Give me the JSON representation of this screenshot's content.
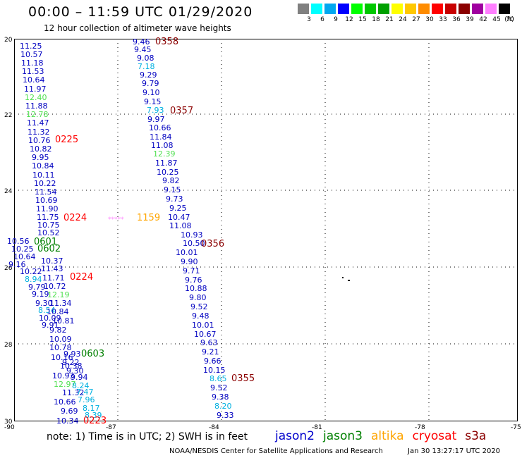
{
  "header": {
    "title": "00:00 – 11:59 UTC 01/29/2020",
    "subtitle": "12 hour collection of altimeter wave heights"
  },
  "colorbar": {
    "unit": "(ft)",
    "colors": [
      "#808080",
      "#00ffff",
      "#00a8f0",
      "#0000ff",
      "#00ff00",
      "#00c800",
      "#00a000",
      "#ffff00",
      "#ffc800",
      "#ff8c00",
      "#ff0000",
      "#c80000",
      "#8b0000",
      "#a000a0",
      "#ff7fff",
      "#000000"
    ],
    "labels": [
      "3",
      "6",
      "9",
      "12",
      "15",
      "18",
      "21",
      "24",
      "27",
      "30",
      "33",
      "36",
      "39",
      "42",
      "45",
      "70"
    ]
  },
  "axes": {
    "y_labels": [
      "20",
      "22",
      "24",
      "26",
      "28",
      "30"
    ],
    "x_labels": [
      "-90",
      "-87",
      "-84",
      "-81",
      "-78",
      "-75"
    ]
  },
  "passes": [
    {
      "label": "0358",
      "color": "#8b0000"
    },
    {
      "label": "0357",
      "color": "#8b0000"
    },
    {
      "label": "0225",
      "color": "#ff0000"
    },
    {
      "label": "0224",
      "color": "#ff0000"
    },
    {
      "label": "1159",
      "color": "#ffa500"
    },
    {
      "label": "0356",
      "color": "#8b0000"
    },
    {
      "label": "0224",
      "color": "#ff0000"
    },
    {
      "label": "0603",
      "color": "#008000"
    },
    {
      "label": "0355",
      "color": "#8b0000"
    },
    {
      "label": "0223",
      "color": "#ff0000"
    },
    {
      "label": "0601",
      "color": "#008000"
    },
    {
      "label": "0602",
      "color": "#008000"
    },
    {
      "label": "*****",
      "color": "#ff88ff"
    }
  ],
  "observations": {
    "track_0358": [
      "9.46",
      "9.45",
      "9.08",
      "7.18",
      "9.29",
      "9.79",
      "9.10",
      "9.15",
      "7.93",
      "9.97",
      "10.66",
      "11.84",
      "11.08",
      "12.39",
      "11.87",
      "10.25",
      "9.82",
      "9.15",
      "9.73",
      "9.25",
      "10.47",
      "11.08",
      "10.93",
      "10.50",
      "10.01",
      "9.90",
      "9.71",
      "9.76",
      "10.88",
      "9.80",
      "9.52",
      "9.48",
      "10.01",
      "10.67",
      "9.63",
      "9.21",
      "9.66",
      "10.15",
      "8.65",
      "9.52",
      "9.38",
      "8.20",
      "9.33"
    ],
    "track_0225": [
      "11.25",
      "10.57",
      "11.18",
      "11.53",
      "10.64",
      "11.97",
      "12.40",
      "11.88",
      "12.78",
      "11.47",
      "11.32",
      "10.76",
      "10.82",
      "9.95",
      "10.84",
      "10.11",
      "10.22",
      "11.54",
      "10.69",
      "11.90",
      "11.75",
      "10.75",
      "10.52",
      "10.56",
      "10.25",
      "10.64",
      "10.37",
      "9.16",
      "10.22",
      "11.43",
      "8.94",
      "11.71",
      "9.79",
      "10.72",
      "9.19",
      "12.19",
      "9.30",
      "11.34",
      "8.54",
      "10.84",
      "10.09",
      "10.81",
      "9.91",
      "9.82",
      "10.09",
      "10.78",
      "10.16",
      "9.93",
      "10.38",
      "9.22",
      "10.93",
      "9.30",
      "9.94",
      "12.97",
      "8.24",
      "11.32",
      "7.47",
      "10.66",
      "7.96",
      "9.69",
      "8.17",
      "10.34",
      "8.39"
    ]
  },
  "footer": {
    "note": "note:  1) Time is in UTC;  2) SWH is in feet",
    "credit": "NOAA/NESDIS Center for Satellite Applications and Research",
    "timestamp": "Jan 30 13:27:17 UTC 2020"
  },
  "legend": [
    {
      "label": "jason2",
      "color": "#0000cc"
    },
    {
      "label": "jason3",
      "color": "#008000"
    },
    {
      "label": "altika",
      "color": "#ffa500"
    },
    {
      "label": "cryosat",
      "color": "#ff0000"
    },
    {
      "label": "s3a",
      "color": "#8b0000"
    }
  ]
}
